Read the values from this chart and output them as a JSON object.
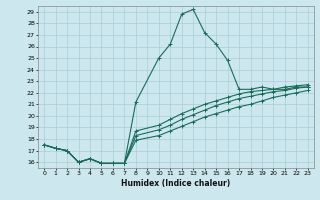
{
  "xlabel": "Humidex (Indice chaleur)",
  "ylabel": "",
  "bg_color": "#cce8ee",
  "line_color": "#1a6b5a",
  "grid_color": "#aaccd8",
  "xlim": [
    -0.5,
    23.5
  ],
  "ylim": [
    15.5,
    29.5
  ],
  "xticks": [
    0,
    1,
    2,
    3,
    4,
    5,
    6,
    7,
    8,
    9,
    10,
    11,
    12,
    13,
    14,
    15,
    16,
    17,
    18,
    19,
    20,
    21,
    22,
    23
  ],
  "yticks": [
    16,
    17,
    18,
    19,
    20,
    21,
    22,
    23,
    24,
    25,
    26,
    27,
    28,
    29
  ],
  "series": [
    {
      "x": [
        0,
        1,
        2,
        3,
        4,
        5,
        6,
        7,
        8,
        10,
        11,
        12,
        13,
        14,
        15,
        16,
        17,
        18,
        19,
        20,
        21,
        22,
        23
      ],
      "y": [
        17.5,
        17.2,
        17.0,
        16.0,
        16.3,
        15.9,
        15.9,
        15.9,
        21.2,
        25.0,
        26.2,
        28.8,
        29.2,
        27.2,
        26.2,
        24.8,
        22.3,
        22.3,
        22.5,
        22.3,
        22.3,
        22.5,
        22.5
      ]
    },
    {
      "x": [
        0,
        1,
        2,
        3,
        4,
        5,
        6,
        7,
        8,
        10,
        11,
        12,
        13,
        14,
        15,
        16,
        17,
        18,
        19,
        20,
        21,
        22,
        23
      ],
      "y": [
        17.5,
        17.2,
        17.0,
        16.0,
        16.3,
        15.9,
        15.9,
        15.9,
        17.9,
        18.3,
        18.7,
        19.1,
        19.5,
        19.9,
        20.2,
        20.5,
        20.8,
        21.0,
        21.3,
        21.6,
        21.8,
        22.0,
        22.2
      ]
    },
    {
      "x": [
        0,
        1,
        2,
        3,
        4,
        5,
        6,
        7,
        8,
        10,
        11,
        12,
        13,
        14,
        15,
        16,
        17,
        18,
        19,
        20,
        21,
        22,
        23
      ],
      "y": [
        17.5,
        17.2,
        17.0,
        16.0,
        16.3,
        15.9,
        15.9,
        15.9,
        18.3,
        18.8,
        19.2,
        19.7,
        20.1,
        20.5,
        20.9,
        21.2,
        21.5,
        21.7,
        21.9,
        22.1,
        22.2,
        22.4,
        22.5
      ]
    },
    {
      "x": [
        0,
        1,
        2,
        3,
        4,
        5,
        6,
        7,
        8,
        10,
        11,
        12,
        13,
        14,
        15,
        16,
        17,
        18,
        19,
        20,
        21,
        22,
        23
      ],
      "y": [
        17.5,
        17.2,
        17.0,
        16.0,
        16.3,
        15.9,
        15.9,
        15.9,
        18.7,
        19.2,
        19.7,
        20.2,
        20.6,
        21.0,
        21.3,
        21.6,
        21.9,
        22.1,
        22.2,
        22.3,
        22.5,
        22.6,
        22.7
      ]
    }
  ]
}
